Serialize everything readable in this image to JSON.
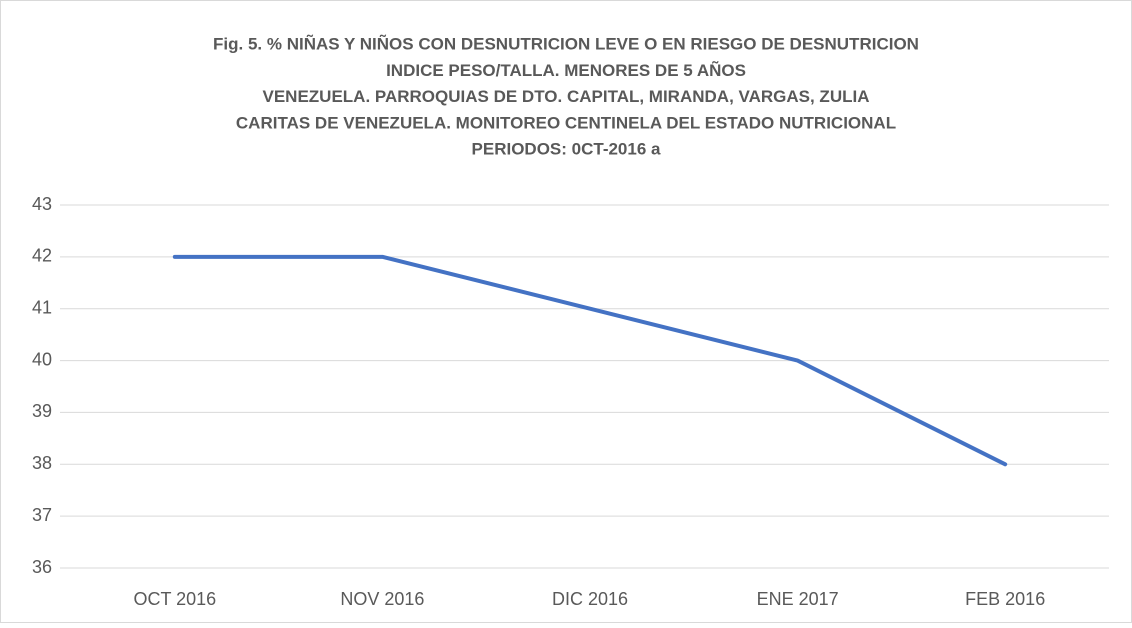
{
  "chart_data": {
    "type": "line",
    "title": [
      "Fig. 5. % NIÑAS Y NIÑOS CON DESNUTRICION LEVE O EN RIESGO DE DESNUTRICION",
      "INDICE PESO/TALLA. MENORES DE 5 AÑOS",
      "VENEZUELA. PARROQUIAS DE DTO. CAPITAL, MIRANDA, VARGAS, ZULIA",
      "CARITAS DE VENEZUELA. MONITOREO CENTINELA DEL ESTADO NUTRICIONAL",
      "PERIODOS: 0CT-2016 a"
    ],
    "categories": [
      "OCT 2016",
      "NOV 2016",
      "DIC 2016",
      "ENE 2017",
      "FEB 2016"
    ],
    "values": [
      42,
      42,
      41,
      40,
      38
    ],
    "color": "#4472c4",
    "ylim": [
      36,
      43
    ],
    "yticks": [
      36,
      37,
      38,
      39,
      40,
      41,
      42,
      43
    ],
    "grid": true
  }
}
